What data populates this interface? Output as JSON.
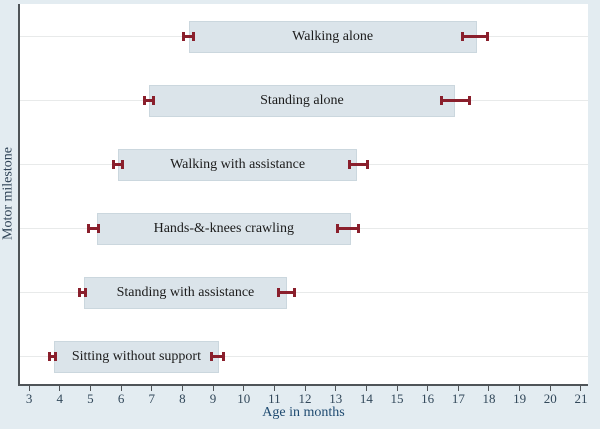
{
  "chart_data": {
    "type": "bar",
    "variant": "horizontal-range-bars-with-error-caps",
    "title": "",
    "xlabel": "Age in months",
    "ylabel": "Motor milestone",
    "xlim": [
      2.67,
      21.23
    ],
    "x_ticks": [
      3,
      4,
      5,
      6,
      7,
      8,
      9,
      10,
      11,
      12,
      13,
      14,
      15,
      16,
      17,
      18,
      19,
      20,
      21
    ],
    "grid": "horizontal reference line per milestone row",
    "legend_position": "none",
    "milestones": [
      {
        "label": "Walking alone",
        "window": [
          8.2,
          17.6
        ],
        "left_ci": [
          8.0,
          8.4
        ],
        "right_ci": [
          17.1,
          18.0
        ]
      },
      {
        "label": "Standing alone",
        "window": [
          6.9,
          16.9
        ],
        "left_ci": [
          6.7,
          7.1
        ],
        "right_ci": [
          16.4,
          17.4
        ]
      },
      {
        "label": "Walking with assistance",
        "window": [
          5.9,
          13.7
        ],
        "left_ci": [
          5.7,
          6.1
        ],
        "right_ci": [
          13.4,
          14.1
        ]
      },
      {
        "label": "Hands-&-knees crawling",
        "window": [
          5.2,
          13.5
        ],
        "left_ci": [
          4.9,
          5.3
        ],
        "right_ci": [
          13.0,
          13.8
        ]
      },
      {
        "label": "Standing with assistance",
        "window": [
          4.8,
          11.4
        ],
        "left_ci": [
          4.6,
          4.9
        ],
        "right_ci": [
          11.1,
          11.7
        ]
      },
      {
        "label": "Sitting without support",
        "window": [
          3.8,
          9.2
        ],
        "left_ci": [
          3.6,
          3.9
        ],
        "right_ci": [
          8.9,
          9.4
        ]
      }
    ],
    "colors": {
      "background": "#e3ecf1",
      "plot_background": "#ffffff",
      "bar_fill": "#dbe4ea",
      "bar_border": "#cbd7de",
      "cap": "#8a1f2c",
      "axis_line": "#4f5458",
      "grid_line": "#e8eaea",
      "tick_label": "#32485a",
      "x_title": "#1e4a70",
      "y_title": "#2f4356",
      "bar_label": "#1b1b1b"
    }
  }
}
